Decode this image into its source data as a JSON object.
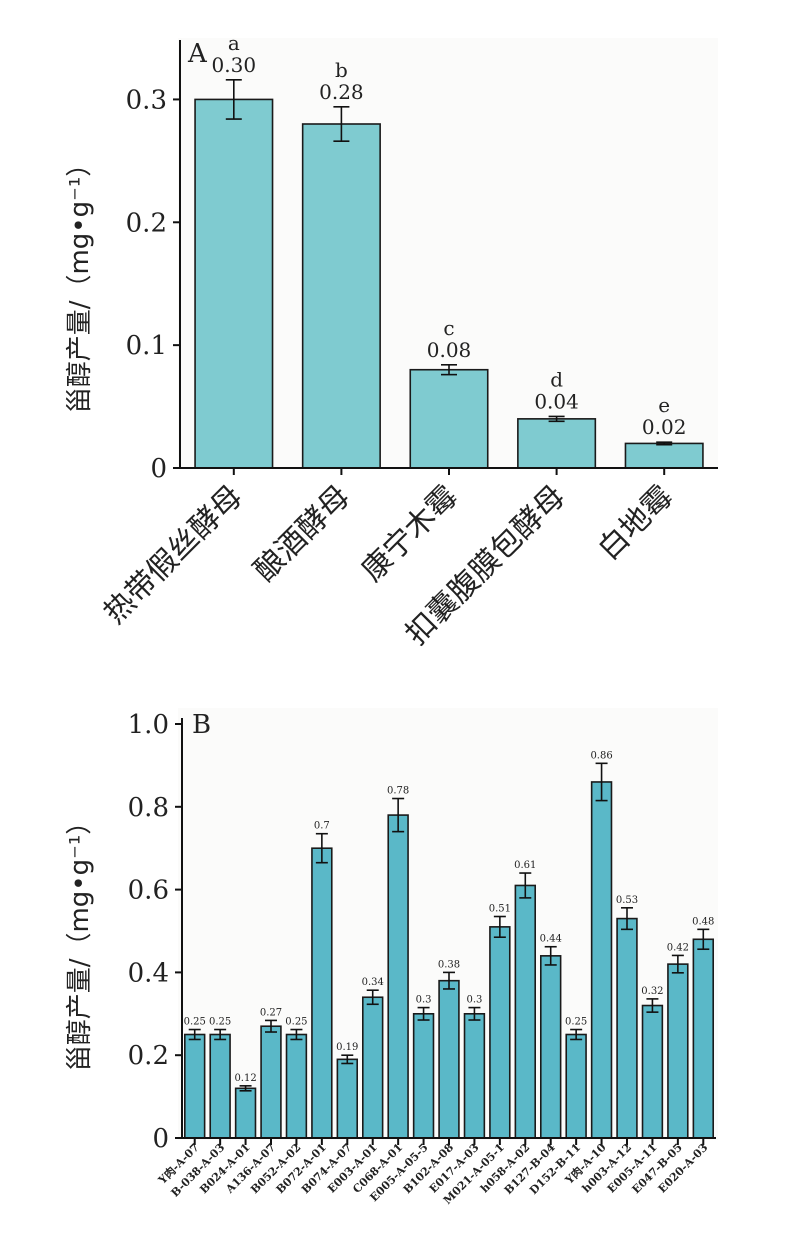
{
  "chart_data": [
    {
      "type": "bar",
      "panel_label": "A",
      "ylabel": "甾醇产量/（mg•g⁻¹）",
      "ylim": [
        0,
        0.35
      ],
      "yticks": [
        "0",
        "0.1",
        "0.2",
        "0.3"
      ],
      "ytick_values": [
        0,
        0.1,
        0.2,
        0.3
      ],
      "bar_color": "#7fcbd0",
      "categories": [
        "热带假丝酵母",
        "酿酒酵母",
        "康宁木霉",
        "扣囊腹膜包酵母",
        "白地霉"
      ],
      "values": [
        0.3,
        0.28,
        0.08,
        0.04,
        0.02
      ],
      "errors": [
        0.016,
        0.014,
        0.004,
        0.002,
        0.001
      ],
      "value_labels": [
        "0.30",
        "0.28",
        "0.08",
        "0.04",
        "0.02"
      ],
      "significance_letters": [
        "a",
        "b",
        "c",
        "d",
        "e"
      ]
    },
    {
      "type": "bar",
      "panel_label": "B",
      "ylabel": "甾醇产量/（mg•g⁻¹）",
      "ylim": [
        0,
        1.0
      ],
      "yticks": [
        "0",
        "0.2",
        "0.4",
        "0.6",
        "0.8",
        "1.0"
      ],
      "ytick_values": [
        0,
        0.2,
        0.4,
        0.6,
        0.8,
        1.0
      ],
      "bar_color": "#5ab8c8",
      "categories": [
        "Y肉-A-07",
        "B-038-A-03",
        "B024-A-01",
        "A136-A-07",
        "B052-A-02",
        "B072-A-01",
        "B074-A-07",
        "E003-A-01",
        "C068-A-01",
        "E005-A-05-5",
        "B102-A-08",
        "E017-A-03",
        "M021-A-05-1",
        "h058-A-02",
        "B127-B-04",
        "D152-B-11",
        "Y肉-A-10",
        "h003-A-12",
        "E005-A-11",
        "E047-B-05",
        "E020-A-03"
      ],
      "values": [
        0.25,
        0.25,
        0.12,
        0.27,
        0.25,
        0.7,
        0.19,
        0.34,
        0.78,
        0.3,
        0.38,
        0.3,
        0.51,
        0.61,
        0.44,
        0.25,
        0.86,
        0.53,
        0.32,
        0.42,
        0.48
      ],
      "errors": [
        0.012,
        0.012,
        0.006,
        0.014,
        0.012,
        0.035,
        0.01,
        0.017,
        0.04,
        0.015,
        0.02,
        0.015,
        0.025,
        0.03,
        0.022,
        0.012,
        0.045,
        0.026,
        0.016,
        0.021,
        0.024
      ],
      "value_labels": [
        "0.25",
        "0.25",
        "0.12",
        "0.27",
        "0.25",
        "0.7",
        "0.19",
        "0.34",
        "0.78",
        "0.3",
        "0.38",
        "0.3",
        "0.51",
        "0.61",
        "0.44",
        "0.25",
        "0.86",
        "0.53",
        "0.32",
        "0.42",
        "0.48"
      ]
    }
  ]
}
